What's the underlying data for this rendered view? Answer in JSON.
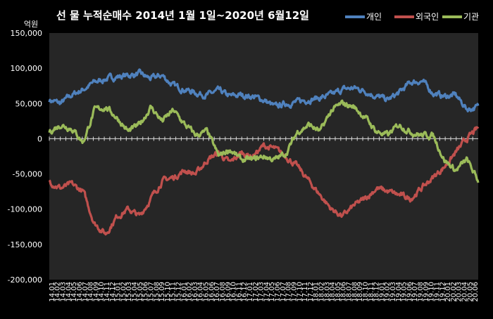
{
  "chart_data": {
    "type": "line",
    "title": "선 물 누적순매수 2014년 1월 1일~2020년 6월12일",
    "ylabel": "억원",
    "ylim": [
      -200000,
      150000
    ],
    "yticks": [
      150000,
      100000,
      50000,
      0,
      -50000,
      -100000,
      -150000,
      -200000
    ],
    "ytick_labels": [
      "150,000",
      "100,000",
      "50,000",
      "0",
      "-50,000",
      "-100,000",
      "-150,000",
      "-200,000"
    ],
    "grid": false,
    "legend_position": "top-right",
    "background": "#262626",
    "x": [
      "14.01",
      "14.03",
      "14.05",
      "14.07",
      "14.09",
      "14.11",
      "15.01",
      "15.03",
      "15.05",
      "15.07",
      "15.09",
      "15.11",
      "16.01",
      "16.03",
      "16.05",
      "16.07",
      "16.09",
      "16.11",
      "17.01",
      "17.03",
      "17.05",
      "17.07",
      "17.09",
      "17.11",
      "18.01",
      "18.03",
      "18.05",
      "18.07",
      "18.09",
      "18.11",
      "19.01",
      "19.03",
      "19.05",
      "19.07",
      "19.09",
      "19.11",
      "20.01",
      "20.03",
      "20.05"
    ],
    "x_tick_labels": [
      "14.01",
      "14.02",
      "14.03",
      "14.04",
      "14.05",
      "14.06",
      "14.07",
      "14.08",
      "14.09",
      "14.10",
      "14.11",
      "14.12",
      "15.01",
      "15.02",
      "15.03",
      "15.04",
      "15.05",
      "15.06",
      "15.07",
      "15.08",
      "15.09",
      "15.10",
      "15.11",
      "15.12",
      "16.01",
      "16.02",
      "16.03",
      "16.04",
      "16.05",
      "16.06",
      "16.07",
      "16.08",
      "16.09",
      "16.10",
      "16.11",
      "16.12",
      "17.01",
      "17.02",
      "17.03",
      "17.04",
      "17.05",
      "17.06",
      "17.07",
      "17.08",
      "17.09",
      "17.10",
      "17.11",
      "17.12",
      "18.01",
      "18.02",
      "18.03",
      "18.04",
      "18.05",
      "18.06",
      "18.07",
      "18.08",
      "18.09",
      "18.10",
      "18.11",
      "18.12",
      "19.01",
      "19.02",
      "19.03",
      "19.04",
      "19.05",
      "19.06",
      "19.07",
      "19.08",
      "19.09",
      "19.10",
      "19.11",
      "19.12",
      "20.01",
      "20.02",
      "20.03",
      "20.04",
      "20.05",
      "20.06"
    ],
    "series": [
      {
        "name": "개인",
        "color": "#4F81BD",
        "values": [
          55000,
          50000,
          62000,
          70000,
          80000,
          85000,
          88000,
          90000,
          92000,
          85000,
          90000,
          75000,
          70000,
          65000,
          62000,
          68000,
          60000,
          62000,
          60000,
          55000,
          45000,
          50000,
          52000,
          56000,
          58000,
          62000,
          70000,
          72000,
          68000,
          60000,
          55000,
          65000,
          80000,
          82000,
          65000,
          60000,
          62000,
          42000,
          45000
        ]
      },
      {
        "name": "외국인",
        "color": "#C0504D",
        "values": [
          -60000,
          -70000,
          -65000,
          -75000,
          -120000,
          -135000,
          -110000,
          -100000,
          -110000,
          -85000,
          -60000,
          -55000,
          -45000,
          -50000,
          -30000,
          -20000,
          -35000,
          -20000,
          -25000,
          -10000,
          -15000,
          -25000,
          -40000,
          -60000,
          -80000,
          -100000,
          -110000,
          -95000,
          -85000,
          -70000,
          -75000,
          -80000,
          -85000,
          -70000,
          -55000,
          -40000,
          -20000,
          0,
          15000
        ]
      },
      {
        "name": "기관",
        "color": "#9BBB59",
        "values": [
          10000,
          20000,
          15000,
          -5000,
          40000,
          45000,
          30000,
          10000,
          20000,
          45000,
          25000,
          40000,
          20000,
          5000,
          10000,
          -25000,
          -15000,
          -30000,
          -30000,
          -25000,
          -30000,
          -20000,
          10000,
          20000,
          10000,
          40000,
          50000,
          45000,
          30000,
          10000,
          5000,
          20000,
          10000,
          5000,
          5000,
          -30000,
          -45000,
          -30000,
          -60000
        ]
      }
    ]
  }
}
